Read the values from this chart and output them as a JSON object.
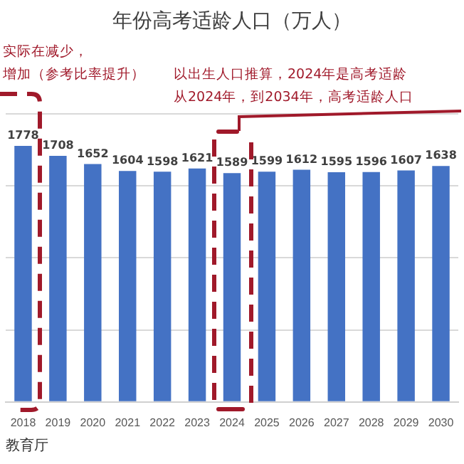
{
  "chart_data": {
    "type": "bar",
    "title": "年份高考适龄人口（万人）",
    "categories": [
      "2018",
      "2019",
      "2020",
      "2021",
      "2022",
      "2023",
      "2024",
      "2025",
      "2026",
      "2027",
      "2028",
      "2029",
      "2030"
    ],
    "values": [
      1778,
      1708,
      1652,
      1604,
      1598,
      1621,
      1589,
      1599,
      1612,
      1595,
      1596,
      1607,
      1638
    ],
    "color": "#4472c4",
    "grid": "y",
    "tick_labels": "x",
    "data_labels": true,
    "legend": false,
    "annotations": [
      "实际在减少，",
      "增加（参考比率提升）",
      "以出生人口推算，2024年是高考适龄",
      "从2024年，到2034年，高考适龄人口",
      "教育厅"
    ]
  }
}
